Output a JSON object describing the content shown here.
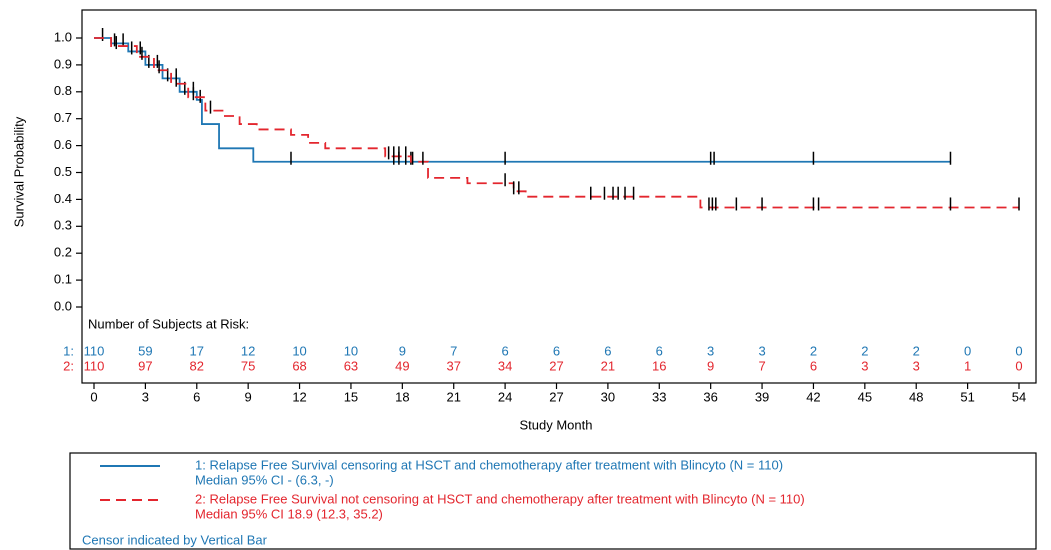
{
  "chart_data": {
    "type": "km",
    "xlabel": "Study Month",
    "ylabel": "Survival Probability",
    "xlim": [
      0,
      54
    ],
    "xticks": [
      0,
      3,
      6,
      9,
      12,
      15,
      18,
      21,
      24,
      27,
      30,
      33,
      36,
      39,
      42,
      45,
      48,
      51,
      54
    ],
    "ylim": [
      0,
      1
    ],
    "yticks": [
      {
        "value": 0,
        "label": "0.0"
      },
      0.1,
      0.2,
      0.3,
      0.4,
      0.5,
      0.6,
      0.7,
      0.8,
      0.9,
      {
        "value": 1,
        "label": "1.0"
      }
    ],
    "censor_color": "#000000",
    "risk_title": "Number of Subjects at Risk:",
    "series": [
      {
        "name": "1: Relapse Free Survival censoring at HSCT and chemotherapy after treatment with Blincyto (N = 110)",
        "median": "Median 95% CI - (6.3, -)",
        "label": "1:",
        "color": "#1f77b4",
        "dash": false,
        "x": [
          0,
          1,
          2,
          3,
          4,
          5,
          6,
          6.3,
          7.3,
          9.3,
          50
        ],
        "values": [
          1.0,
          0.98,
          0.95,
          0.9,
          0.85,
          0.8,
          0.77,
          0.68,
          0.59,
          0.54,
          0.54
        ],
        "censor_x": [
          0.5,
          1.2,
          1.7,
          2.2,
          2.7,
          3.2,
          3.7,
          4.3,
          4.8,
          5.3,
          5.8,
          6.2,
          11.5,
          17.5,
          17.8,
          18.2,
          18.5,
          24,
          36,
          36.2,
          42,
          50
        ],
        "censor_y": [
          1.0,
          0.98,
          0.98,
          0.95,
          0.95,
          0.9,
          0.9,
          0.85,
          0.85,
          0.8,
          0.8,
          0.77,
          0.54,
          0.54,
          0.54,
          0.54,
          0.54,
          0.54,
          0.54,
          0.54,
          0.54,
          0.54
        ],
        "at_risk": [
          110,
          59,
          17,
          12,
          10,
          10,
          9,
          7,
          6,
          6,
          6,
          6,
          3,
          3,
          2,
          2,
          2,
          0,
          0
        ]
      },
      {
        "name": "2: Relapse Free Survival not censoring at HSCT and chemotherapy after treatment with Blincyto (N = 110)",
        "median": "Median 95% CI 18.9 (12.3, 35.2)",
        "label": "2:",
        "color": "#e3262e",
        "dash": true,
        "x": [
          0,
          1,
          2.5,
          3.5,
          4.5,
          5.5,
          6.5,
          7.5,
          8.5,
          9.5,
          11.5,
          12.5,
          13.5,
          17,
          18.5,
          19.5,
          21.8,
          24.5,
          25.2,
          35.4,
          54
        ],
        "values": [
          1.0,
          0.97,
          0.93,
          0.88,
          0.83,
          0.78,
          0.73,
          0.71,
          0.68,
          0.66,
          0.64,
          0.61,
          0.59,
          0.56,
          0.54,
          0.48,
          0.46,
          0.43,
          0.41,
          0.37,
          0.37
        ],
        "censor_x": [
          1.3,
          2.8,
          3.8,
          4.8,
          5.8,
          6.8,
          17.2,
          17.5,
          17.8,
          18.2,
          18.6,
          19.2,
          24,
          24.5,
          24.8,
          29,
          29.8,
          30.3,
          30.6,
          31,
          31.5,
          35.9,
          36.1,
          36.3,
          37.5,
          39,
          42,
          42.3,
          50,
          54
        ],
        "censor_y": [
          0.97,
          0.93,
          0.88,
          0.83,
          0.78,
          0.73,
          0.56,
          0.56,
          0.56,
          0.56,
          0.54,
          0.54,
          0.46,
          0.43,
          0.43,
          0.41,
          0.41,
          0.41,
          0.41,
          0.41,
          0.41,
          0.37,
          0.37,
          0.37,
          0.37,
          0.37,
          0.37,
          0.37,
          0.37,
          0.37
        ],
        "at_risk": [
          110,
          97,
          82,
          75,
          68,
          63,
          49,
          37,
          34,
          27,
          21,
          16,
          9,
          7,
          6,
          3,
          3,
          1,
          0
        ]
      }
    ],
    "note": "Censor indicated by Vertical Bar"
  }
}
